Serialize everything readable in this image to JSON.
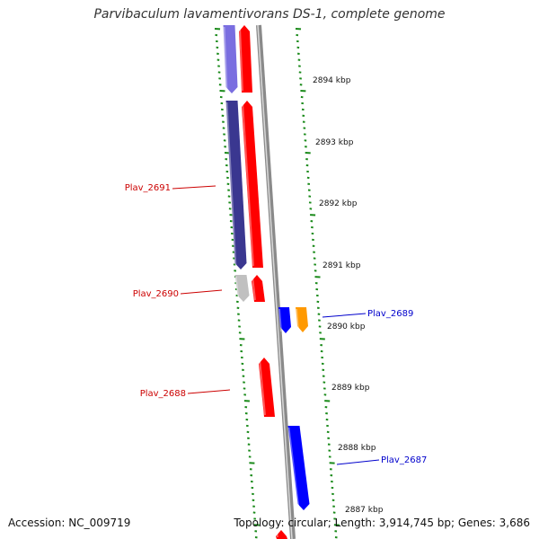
{
  "title": "Parvibaculum lavamentivorans DS-1, complete genome",
  "accession": "Accession: NC_009719",
  "summary": "Topology: circular; Length: 3,914,745 bp; Genes: 3,686",
  "colors": {
    "backbone": "#8a8a8a",
    "tick": "#1a8a1a",
    "label_red": "#cc0000",
    "label_blue": "#0000cc",
    "gene_red": "#ff0000",
    "gene_blue": "#0000ff",
    "gene_purple": "#7a6ee0",
    "gene_darkpurple": "#3a3790",
    "gene_gray": "#c0c0c0",
    "gene_orange": "#ff9900"
  },
  "ruler": {
    "unit": "kbp",
    "labels": [
      "2894 kbp",
      "2893 kbp",
      "2892 kbp",
      "2891 kbp",
      "2890 kbp",
      "2889 kbp",
      "2888 kbp",
      "2887 kbp"
    ]
  },
  "genes": [
    {
      "name": "",
      "color": "gene_purple",
      "strand": "reverse"
    },
    {
      "name": "",
      "color": "gene_red",
      "strand": "forward"
    },
    {
      "name": "Plav_2691",
      "color": "gene_darkpurple",
      "strand": "reverse"
    },
    {
      "name": "",
      "color": "gene_red",
      "strand": "forward"
    },
    {
      "name": "Plav_2690",
      "color": "gene_gray",
      "strand": "reverse"
    },
    {
      "name": "",
      "color": "gene_red",
      "strand": "forward"
    },
    {
      "name": "",
      "color": "gene_blue",
      "strand": "reverse"
    },
    {
      "name": "Plav_2689",
      "color": "gene_orange",
      "strand": "reverse"
    },
    {
      "name": "Plav_2688",
      "color": "gene_red",
      "strand": "forward"
    },
    {
      "name": "Plav_2687",
      "color": "gene_blue",
      "strand": "reverse"
    },
    {
      "name": "",
      "color": "gene_red",
      "strand": "forward"
    }
  ],
  "gene_labels": [
    {
      "text": "Plav_2691",
      "color": "label_red"
    },
    {
      "text": "Plav_2690",
      "color": "label_red"
    },
    {
      "text": "Plav_2689",
      "color": "label_blue"
    },
    {
      "text": "Plav_2688",
      "color": "label_red"
    },
    {
      "text": "Plav_2687",
      "color": "label_blue"
    }
  ]
}
